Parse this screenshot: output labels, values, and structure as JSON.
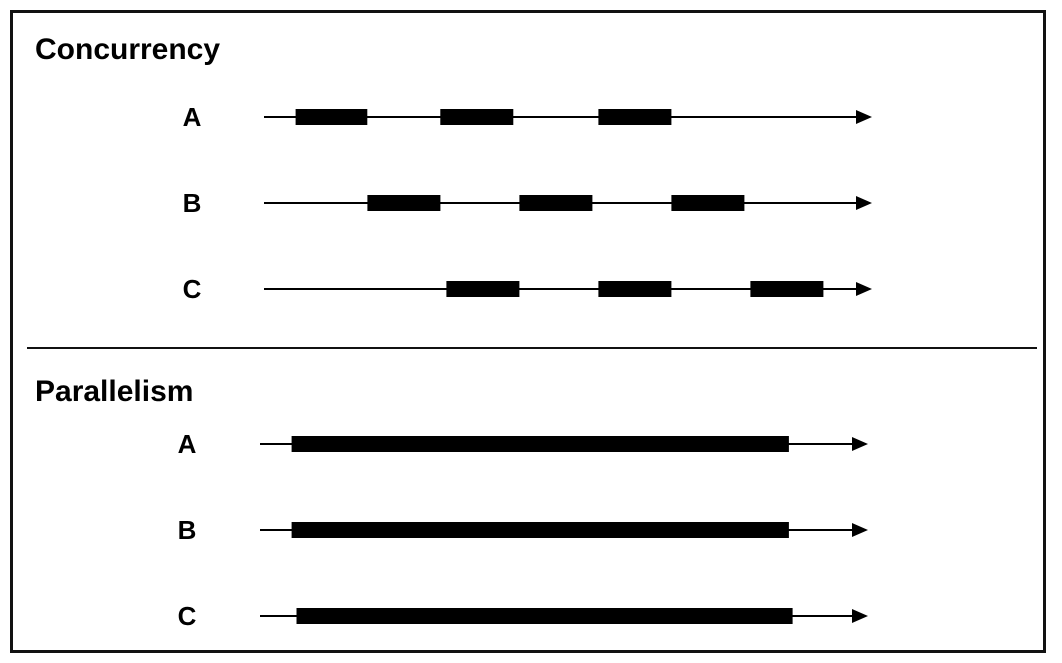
{
  "colors": {
    "ink": "#000000",
    "frame": "#111111",
    "background": "#ffffff"
  },
  "sections": [
    {
      "title": "Concurrency",
      "threads": [
        {
          "label": "A",
          "segments": [
            [
              0.052,
              0.17
            ],
            [
              0.29,
              0.41
            ],
            [
              0.55,
              0.67
            ]
          ]
        },
        {
          "label": "B",
          "segments": [
            [
              0.17,
              0.29
            ],
            [
              0.42,
              0.54
            ],
            [
              0.67,
              0.79
            ]
          ]
        },
        {
          "label": "C",
          "segments": [
            [
              0.3,
              0.42
            ],
            [
              0.55,
              0.67
            ],
            [
              0.8,
              0.92
            ]
          ]
        }
      ]
    },
    {
      "title": "Parallelism",
      "threads": [
        {
          "label": "A",
          "segments": [
            [
              0.052,
              0.87
            ]
          ]
        },
        {
          "label": "B",
          "segments": [
            [
              0.052,
              0.87
            ]
          ]
        },
        {
          "label": "C",
          "segments": [
            [
              0.06,
              0.876
            ]
          ]
        }
      ]
    }
  ]
}
